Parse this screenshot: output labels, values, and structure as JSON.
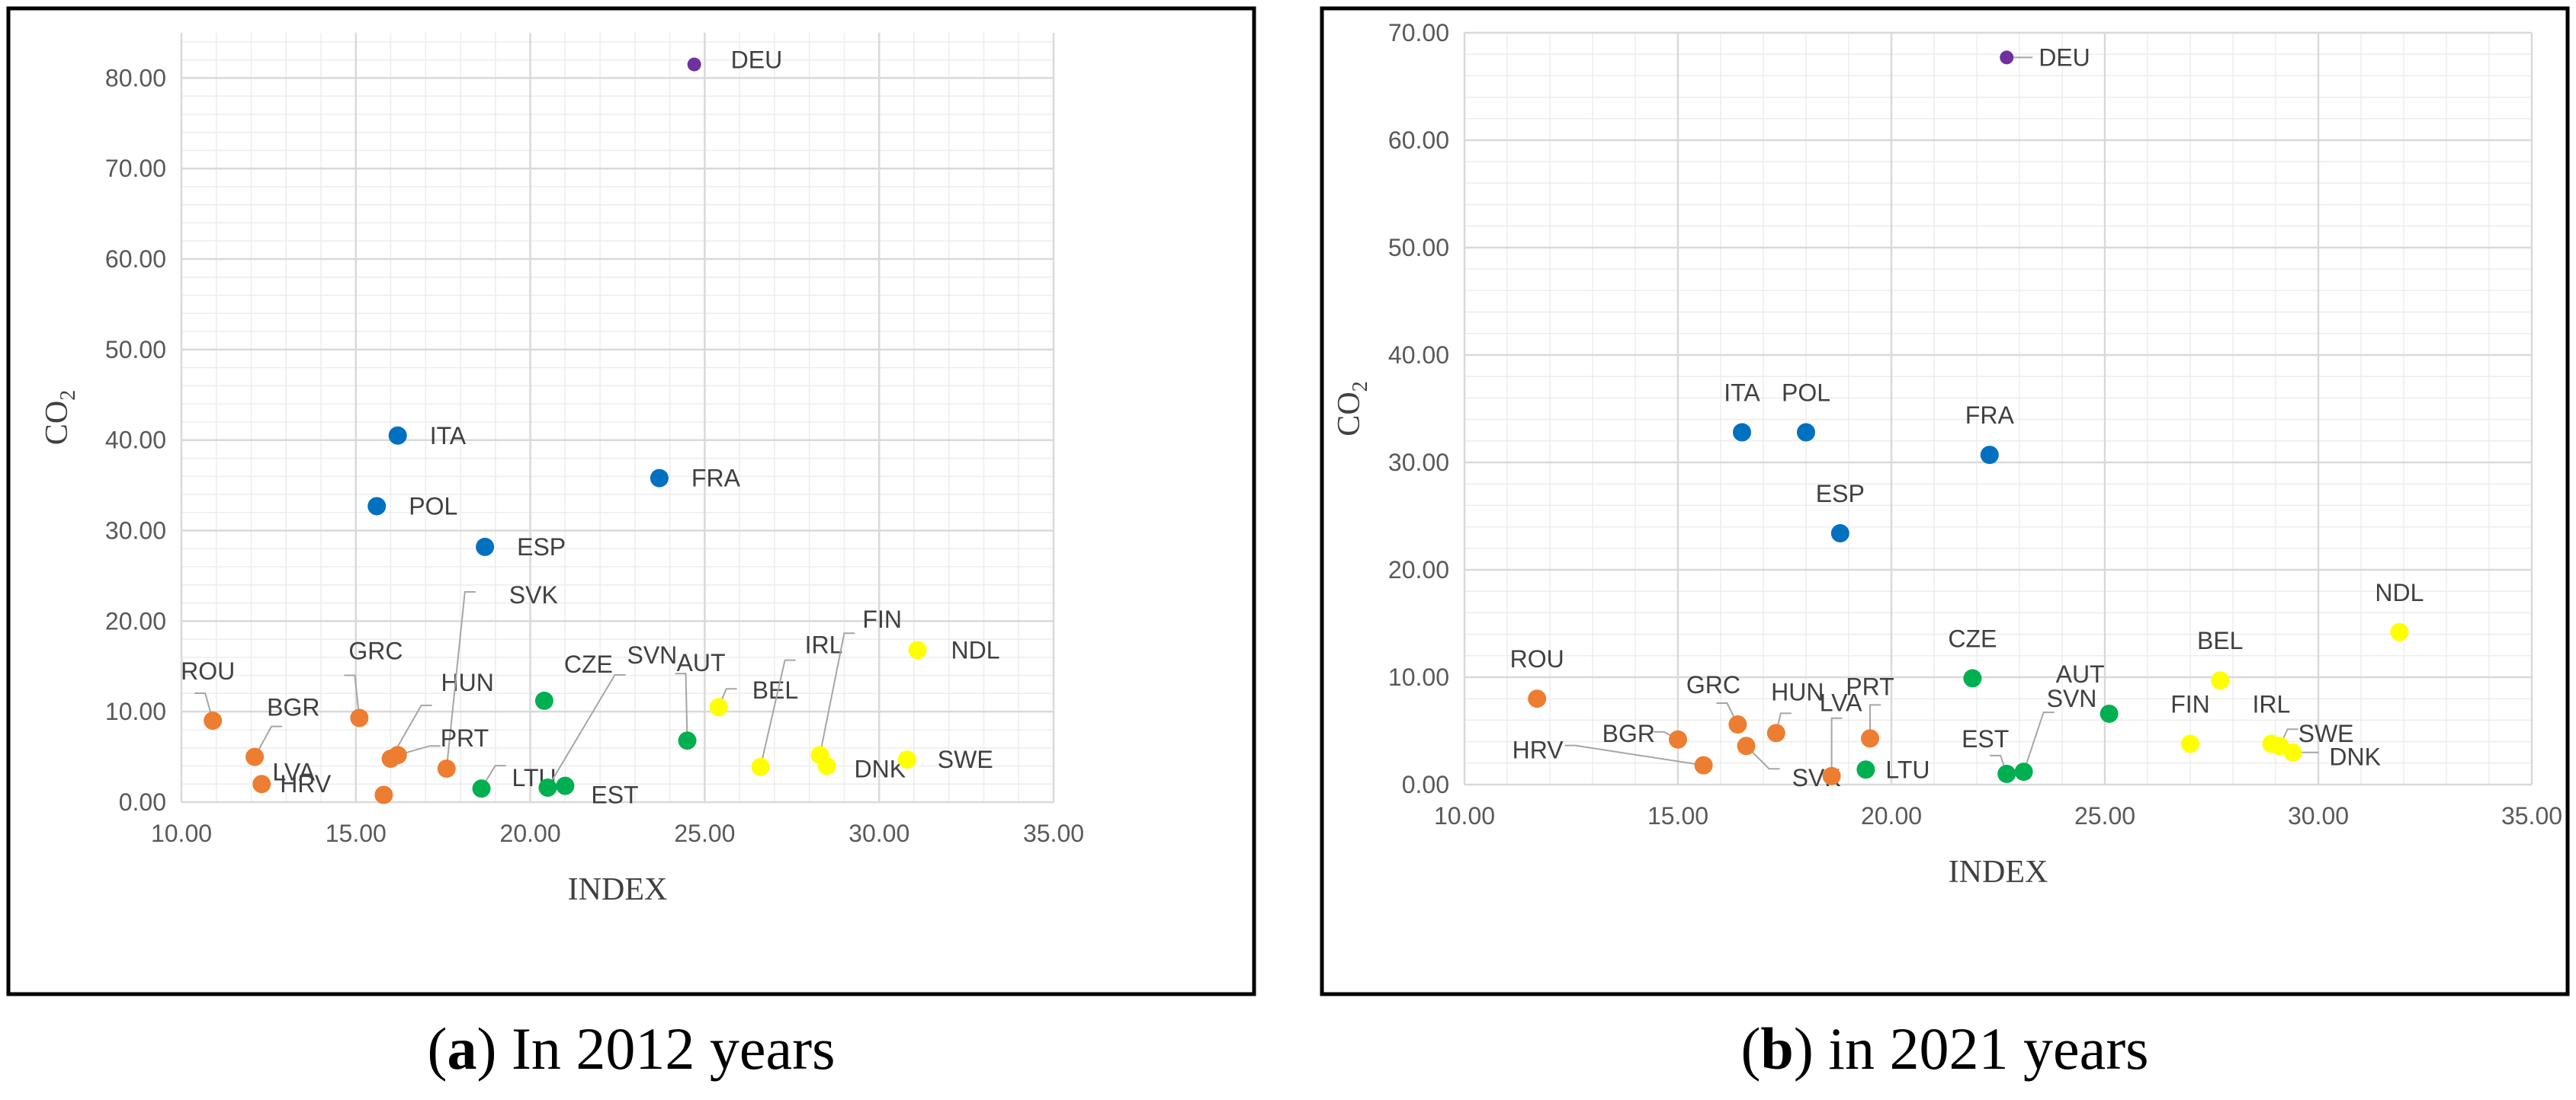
{
  "colors": {
    "orange": "#ED7D31",
    "blue": "#0070C0",
    "green": "#00B050",
    "yellow": "#FFFF00",
    "purple": "#7030A0",
    "grid": "#D9D9D9",
    "frame": "#000000"
  },
  "chart_data": [
    {
      "type": "scatter",
      "xlabel": "INDEX",
      "ylabel": "CO",
      "ylabel_sub": "2",
      "xlim": [
        10,
        35
      ],
      "ylim": [
        0,
        85
      ],
      "xticks": [
        "10.00",
        "15.00",
        "20.00",
        "25.00",
        "30.00",
        "35.00"
      ],
      "yticks": [
        "0.00",
        "10.00",
        "20.00",
        "30.00",
        "40.00",
        "50.00",
        "60.00",
        "70.00",
        "80.00"
      ],
      "caption_letter": "a",
      "caption_text": "In 2012 years",
      "points": [
        {
          "label": "DEU",
          "x": 24.7,
          "y": 81.5,
          "color": "purple"
        },
        {
          "label": "ITA",
          "x": 16.2,
          "y": 40.5,
          "color": "blue"
        },
        {
          "label": "FRA",
          "x": 23.7,
          "y": 35.8,
          "color": "blue"
        },
        {
          "label": "POL",
          "x": 15.6,
          "y": 32.7,
          "color": "blue"
        },
        {
          "label": "ESP",
          "x": 18.7,
          "y": 28.2,
          "color": "blue"
        },
        {
          "label": "ROU",
          "x": 10.9,
          "y": 9.0,
          "color": "orange"
        },
        {
          "label": "BGR",
          "x": 12.1,
          "y": 5.0,
          "color": "orange"
        },
        {
          "label": "HRV",
          "x": 12.3,
          "y": 2.0,
          "color": "orange"
        },
        {
          "label": "GRC",
          "x": 15.1,
          "y": 9.3,
          "color": "orange"
        },
        {
          "label": "HUN",
          "x": 16.0,
          "y": 4.8,
          "color": "orange"
        },
        {
          "label": "SVK",
          "x": 17.6,
          "y": 3.7,
          "color": "orange"
        },
        {
          "label": "PRT",
          "x": 16.2,
          "y": 5.2,
          "color": "orange"
        },
        {
          "label": "LVA",
          "x": 15.8,
          "y": 0.8,
          "color": "orange"
        },
        {
          "label": "CZE",
          "x": 20.4,
          "y": 11.2,
          "color": "green"
        },
        {
          "label": "LTU",
          "x": 18.6,
          "y": 1.5,
          "color": "green"
        },
        {
          "label": "SVN",
          "x": 20.5,
          "y": 1.6,
          "color": "green"
        },
        {
          "label": "EST",
          "x": 21.0,
          "y": 1.8,
          "color": "green"
        },
        {
          "label": "AUT",
          "x": 24.5,
          "y": 6.8,
          "color": "green"
        },
        {
          "label": "BEL",
          "x": 25.4,
          "y": 10.5,
          "color": "yellow"
        },
        {
          "label": "IRL",
          "x": 26.6,
          "y": 3.9,
          "color": "yellow"
        },
        {
          "label": "FIN",
          "x": 28.3,
          "y": 5.2,
          "color": "yellow"
        },
        {
          "label": "DNK",
          "x": 28.5,
          "y": 4.0,
          "color": "yellow"
        },
        {
          "label": "NDL",
          "x": 31.1,
          "y": 16.8,
          "color": "yellow"
        },
        {
          "label": "SWE",
          "x": 30.8,
          "y": 4.7,
          "color": "yellow"
        }
      ]
    },
    {
      "type": "scatter",
      "xlabel": "INDEX",
      "ylabel": "CO",
      "ylabel_sub": "2",
      "xlim": [
        10,
        35
      ],
      "ylim": [
        0,
        70
      ],
      "xticks": [
        "10.00",
        "15.00",
        "20.00",
        "25.00",
        "30.00",
        "35.00"
      ],
      "yticks": [
        "0.00",
        "10.00",
        "20.00",
        "30.00",
        "40.00",
        "50.00",
        "60.00",
        "70.00"
      ],
      "caption_letter": "b",
      "caption_text": "in 2021 years",
      "points": [
        {
          "label": "DEU",
          "x": 22.7,
          "y": 67.7,
          "color": "purple"
        },
        {
          "label": "ITA",
          "x": 16.5,
          "y": 32.8,
          "color": "blue"
        },
        {
          "label": "POL",
          "x": 18.0,
          "y": 32.8,
          "color": "blue"
        },
        {
          "label": "FRA",
          "x": 22.3,
          "y": 30.7,
          "color": "blue"
        },
        {
          "label": "ESP",
          "x": 18.8,
          "y": 23.4,
          "color": "blue"
        },
        {
          "label": "ROU",
          "x": 11.7,
          "y": 8.0,
          "color": "orange"
        },
        {
          "label": "BGR",
          "x": 15.0,
          "y": 4.2,
          "color": "orange"
        },
        {
          "label": "HRV",
          "x": 15.6,
          "y": 1.8,
          "color": "orange"
        },
        {
          "label": "GRC",
          "x": 16.4,
          "y": 5.6,
          "color": "orange"
        },
        {
          "label": "HUN",
          "x": 17.3,
          "y": 4.8,
          "color": "orange"
        },
        {
          "label": "SVK",
          "x": 16.6,
          "y": 3.6,
          "color": "orange"
        },
        {
          "label": "LVA",
          "x": 18.6,
          "y": 0.8,
          "color": "orange"
        },
        {
          "label": "PRT",
          "x": 19.5,
          "y": 4.3,
          "color": "orange"
        },
        {
          "label": "CZE",
          "x": 21.9,
          "y": 9.9,
          "color": "green"
        },
        {
          "label": "LTU",
          "x": 19.4,
          "y": 1.4,
          "color": "green"
        },
        {
          "label": "EST",
          "x": 22.7,
          "y": 1.0,
          "color": "green"
        },
        {
          "label": "SVN",
          "x": 23.1,
          "y": 1.2,
          "color": "green"
        },
        {
          "label": "AUT",
          "x": 25.1,
          "y": 6.6,
          "color": "green"
        },
        {
          "label": "BEL",
          "x": 27.7,
          "y": 9.7,
          "color": "yellow"
        },
        {
          "label": "FIN",
          "x": 27.0,
          "y": 3.8,
          "color": "yellow"
        },
        {
          "label": "IRL",
          "x": 28.9,
          "y": 3.8,
          "color": "yellow"
        },
        {
          "label": "SWE",
          "x": 29.1,
          "y": 3.6,
          "color": "yellow"
        },
        {
          "label": "DNK",
          "x": 29.4,
          "y": 3.0,
          "color": "yellow"
        },
        {
          "label": "NDL",
          "x": 31.9,
          "y": 14.2,
          "color": "yellow"
        }
      ]
    }
  ]
}
